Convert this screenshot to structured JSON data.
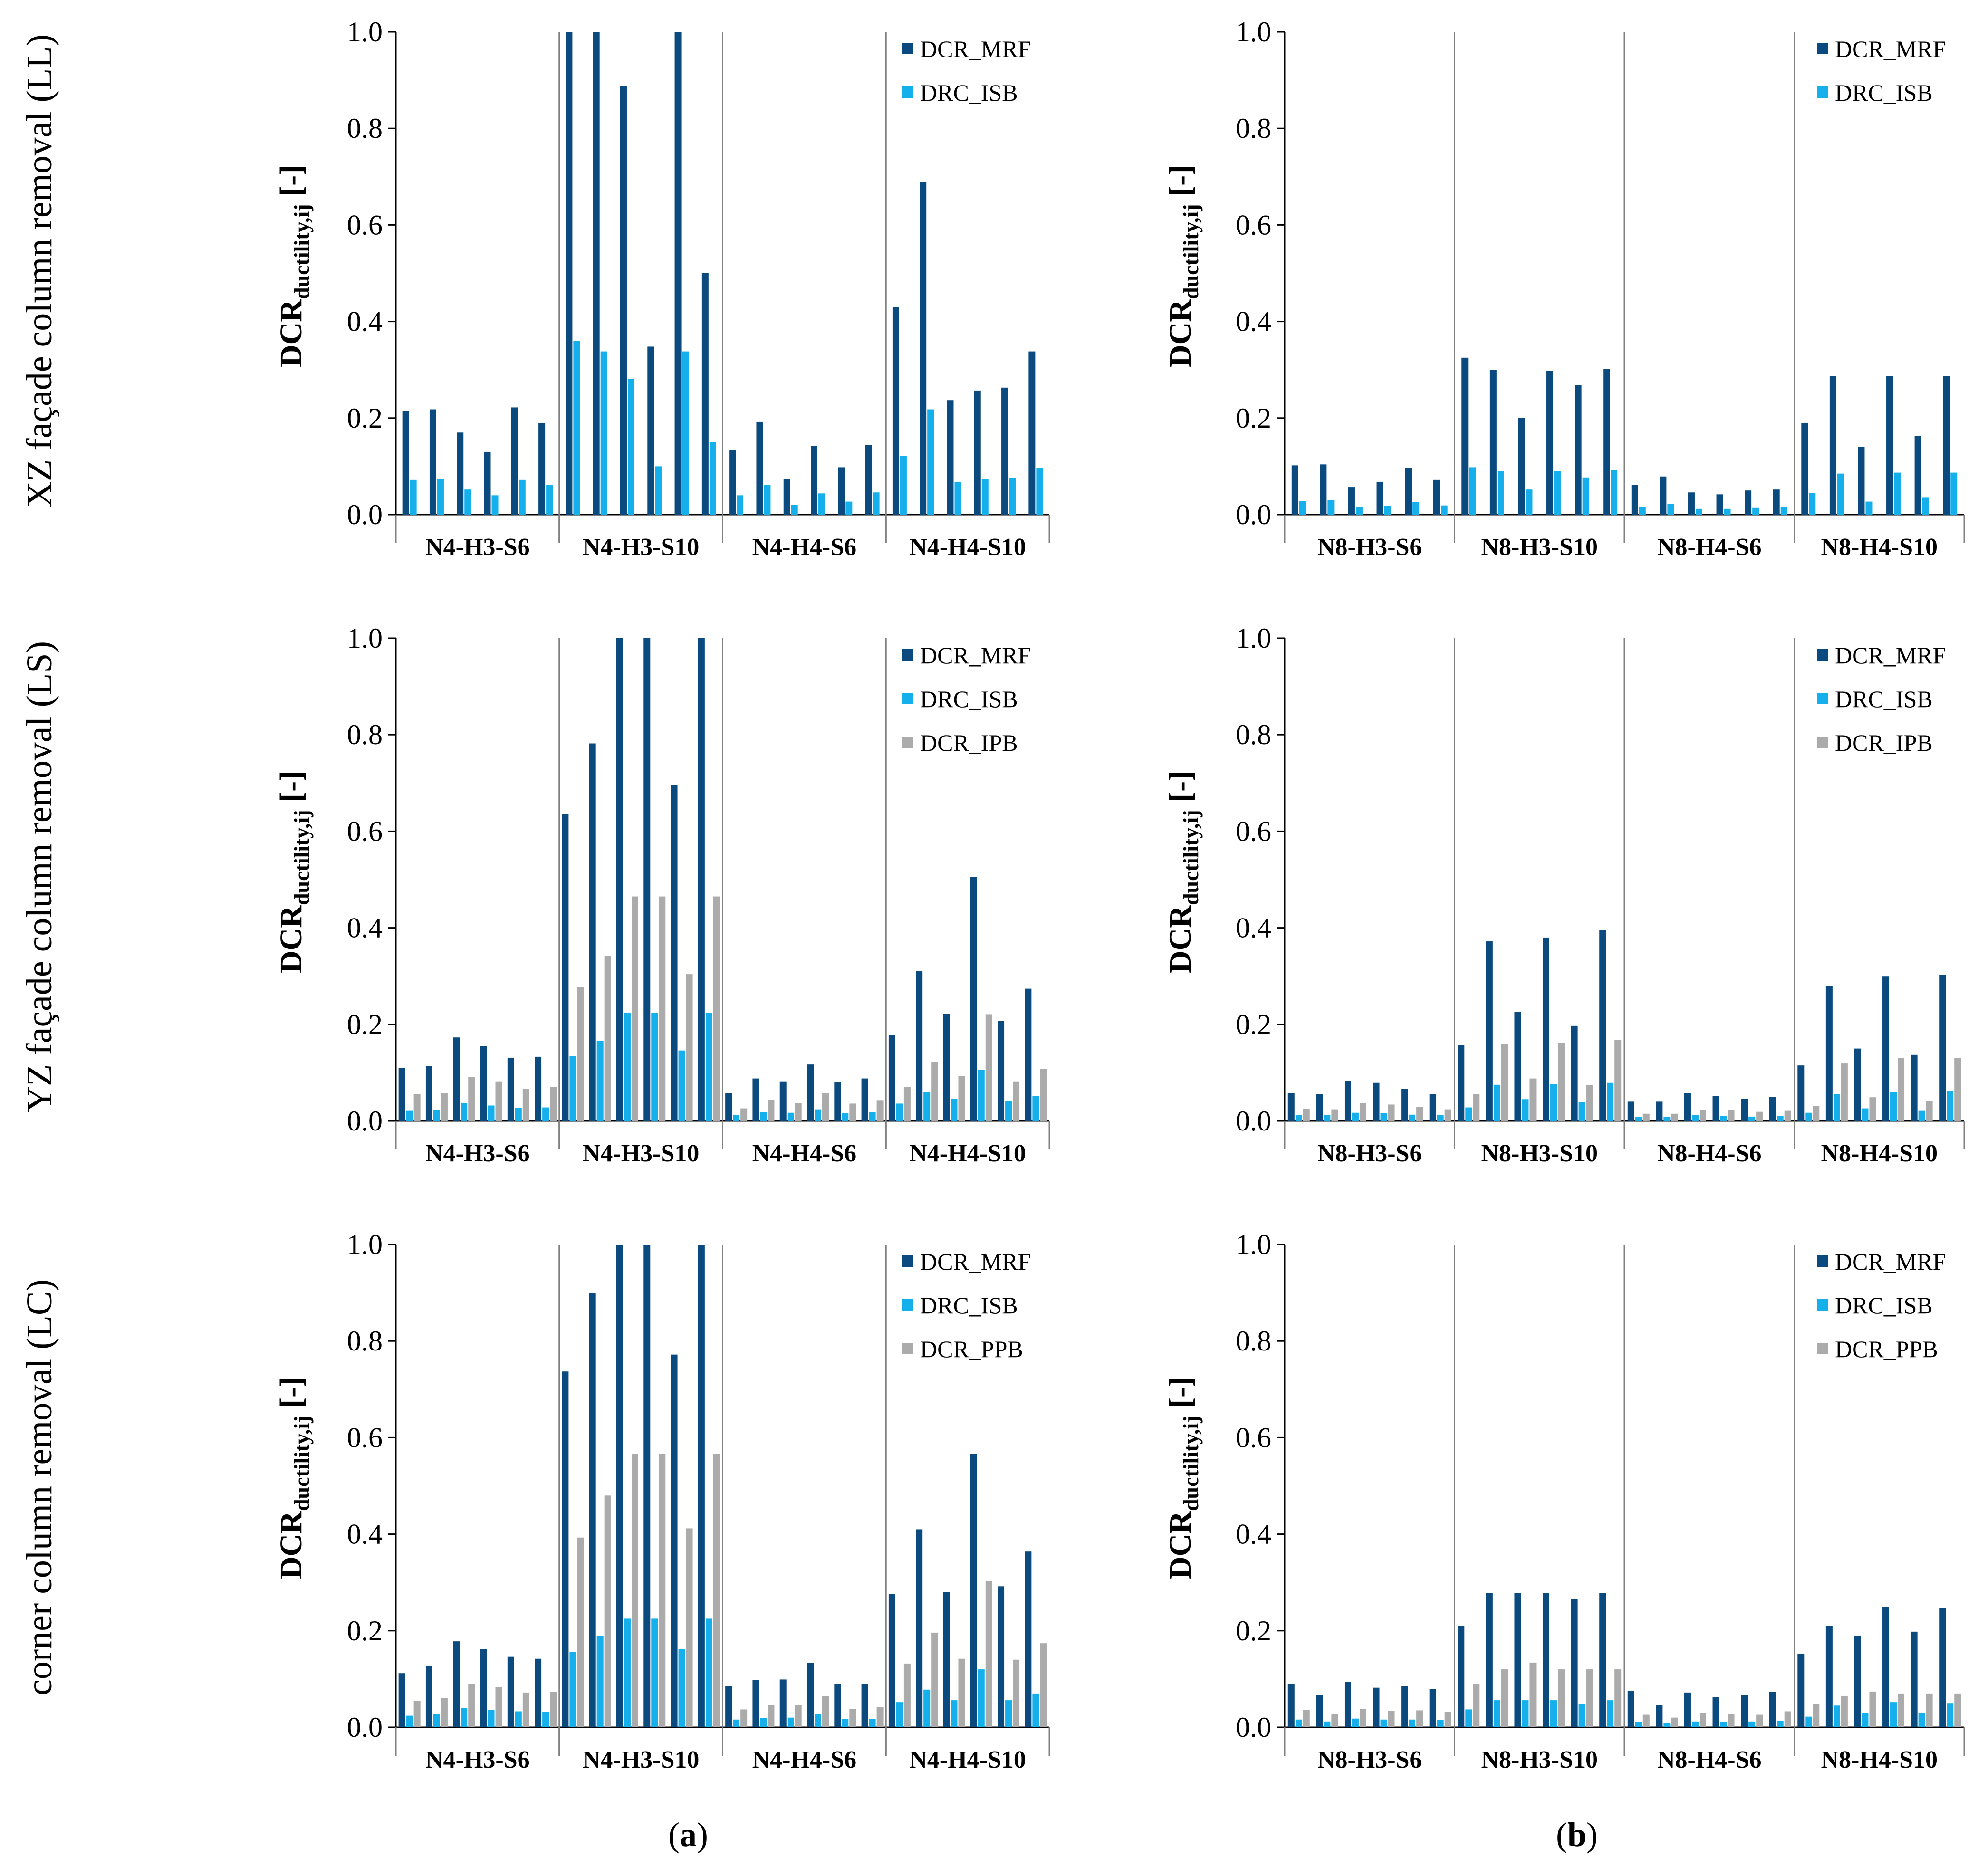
{
  "colors": {
    "mrf": "#0b4a7e",
    "isb": "#15b0ec",
    "ipb": "#ababab",
    "axis": "#000000",
    "divider": "#808080"
  },
  "rows": [
    {
      "label": "XZ façade column removal (LL)"
    },
    {
      "label": "YZ façade column removal (LS)"
    },
    {
      "label": "corner column removal (LC)"
    }
  ],
  "panel_labels": [
    {
      "open": "(",
      "letter": "a",
      "close": ")"
    },
    {
      "open": "(",
      "letter": "b",
      "close": ")"
    }
  ],
  "y_axis": {
    "main": "DCR",
    "sub": "ductility,ij",
    "suffix": " [-]",
    "ticks": [
      "0.0",
      "0.2",
      "0.4",
      "0.6",
      "0.8",
      "1.0"
    ]
  },
  "chart_data": [
    {
      "type": "bar",
      "row": 0,
      "col": 0,
      "ylim": [
        0,
        1.0
      ],
      "categories": [
        "N4-H3-S6",
        "N4-H3-S10",
        "N4-H4-S6",
        "N4-H4-S10"
      ],
      "series": [
        {
          "name": "DCR_MRF",
          "values": [
            [
              0.215,
              0.218,
              0.17,
              0.13,
              0.222,
              0.19
            ],
            [
              1.0,
              1.0,
              0.888,
              0.348,
              1.0,
              0.5
            ],
            [
              0.133,
              0.192,
              0.073,
              0.142,
              0.098,
              0.144
            ],
            [
              0.43,
              0.688,
              0.237,
              0.257,
              0.263,
              0.338
            ]
          ]
        },
        {
          "name": "DRC_ISB",
          "values": [
            [
              0.072,
              0.074,
              0.052,
              0.04,
              0.072,
              0.061
            ],
            [
              0.36,
              0.338,
              0.281,
              0.1,
              0.338,
              0.15
            ],
            [
              0.04,
              0.062,
              0.02,
              0.044,
              0.027,
              0.046
            ],
            [
              0.122,
              0.218,
              0.068,
              0.074,
              0.076,
              0.097
            ]
          ]
        }
      ]
    },
    {
      "type": "bar",
      "row": 0,
      "col": 1,
      "ylim": [
        0,
        1.0
      ],
      "categories": [
        "N8-H3-S6",
        "N8-H3-S10",
        "N8-H4-S6",
        "N8-H4-S10"
      ],
      "series": [
        {
          "name": "DCR_MRF",
          "values": [
            [
              0.102,
              0.104,
              0.057,
              0.068,
              0.097,
              0.072
            ],
            [
              0.325,
              0.3,
              0.2,
              0.298,
              0.268,
              0.302
            ],
            [
              0.062,
              0.079,
              0.046,
              0.042,
              0.05,
              0.052
            ],
            [
              0.19,
              0.287,
              0.14,
              0.287,
              0.163,
              0.287
            ]
          ]
        },
        {
          "name": "DRC_ISB",
          "values": [
            [
              0.028,
              0.03,
              0.015,
              0.018,
              0.026,
              0.019
            ],
            [
              0.098,
              0.09,
              0.052,
              0.09,
              0.077,
              0.092
            ],
            [
              0.016,
              0.022,
              0.012,
              0.012,
              0.014,
              0.015
            ],
            [
              0.045,
              0.085,
              0.027,
              0.087,
              0.036,
              0.087
            ]
          ]
        }
      ]
    },
    {
      "type": "bar",
      "row": 1,
      "col": 0,
      "ylim": [
        0,
        1.0
      ],
      "categories": [
        "N4-H3-S6",
        "N4-H3-S10",
        "N4-H4-S6",
        "N4-H4-S10"
      ],
      "series": [
        {
          "name": "DCR_MRF",
          "values": [
            [
              0.11,
              0.114,
              0.173,
              0.155,
              0.131,
              0.133
            ],
            [
              0.635,
              0.782,
              1.0,
              1.0,
              0.695,
              1.0
            ],
            [
              0.058,
              0.088,
              0.082,
              0.117,
              0.08,
              0.088
            ],
            [
              0.178,
              0.31,
              0.222,
              0.505,
              0.207,
              0.274
            ]
          ]
        },
        {
          "name": "DRC_ISB",
          "values": [
            [
              0.022,
              0.023,
              0.037,
              0.032,
              0.027,
              0.028
            ],
            [
              0.134,
              0.166,
              0.224,
              0.224,
              0.146,
              0.224
            ],
            [
              0.012,
              0.018,
              0.017,
              0.024,
              0.016,
              0.018
            ],
            [
              0.036,
              0.06,
              0.046,
              0.106,
              0.042,
              0.052
            ]
          ]
        },
        {
          "name": "DCR_IPB",
          "values": [
            [
              0.056,
              0.058,
              0.091,
              0.082,
              0.066,
              0.07
            ],
            [
              0.277,
              0.342,
              0.465,
              0.465,
              0.304,
              0.465
            ],
            [
              0.026,
              0.044,
              0.037,
              0.058,
              0.036,
              0.043
            ],
            [
              0.07,
              0.122,
              0.093,
              0.221,
              0.082,
              0.108
            ]
          ]
        }
      ]
    },
    {
      "type": "bar",
      "row": 1,
      "col": 1,
      "ylim": [
        0,
        1.0
      ],
      "categories": [
        "N8-H3-S6",
        "N8-H3-S10",
        "N8-H4-S6",
        "N8-H4-S10"
      ],
      "series": [
        {
          "name": "DCR_MRF",
          "values": [
            [
              0.058,
              0.056,
              0.083,
              0.079,
              0.066,
              0.056
            ],
            [
              0.157,
              0.372,
              0.226,
              0.38,
              0.197,
              0.395
            ],
            [
              0.04,
              0.04,
              0.058,
              0.052,
              0.046,
              0.05
            ],
            [
              0.115,
              0.28,
              0.15,
              0.3,
              0.137,
              0.303
            ]
          ]
        },
        {
          "name": "DRC_ISB",
          "values": [
            [
              0.012,
              0.012,
              0.017,
              0.016,
              0.013,
              0.012
            ],
            [
              0.028,
              0.075,
              0.045,
              0.076,
              0.039,
              0.079
            ],
            [
              0.008,
              0.008,
              0.012,
              0.01,
              0.009,
              0.01
            ],
            [
              0.017,
              0.056,
              0.026,
              0.06,
              0.022,
              0.061
            ]
          ]
        },
        {
          "name": "DCR_IPB",
          "values": [
            [
              0.025,
              0.024,
              0.037,
              0.034,
              0.029,
              0.024
            ],
            [
              0.056,
              0.16,
              0.088,
              0.162,
              0.074,
              0.168
            ],
            [
              0.015,
              0.015,
              0.023,
              0.023,
              0.019,
              0.022
            ],
            [
              0.031,
              0.119,
              0.049,
              0.13,
              0.042,
              0.13
            ]
          ]
        }
      ]
    },
    {
      "type": "bar",
      "row": 2,
      "col": 0,
      "ylim": [
        0,
        1.0
      ],
      "categories": [
        "N4-H3-S6",
        "N4-H3-S10",
        "N4-H4-S6",
        "N4-H4-S10"
      ],
      "series": [
        {
          "name": "DCR_MRF",
          "values": [
            [
              0.112,
              0.128,
              0.178,
              0.162,
              0.146,
              0.142
            ],
            [
              0.737,
              0.9,
              1.0,
              1.0,
              0.772,
              1.0
            ],
            [
              0.085,
              0.098,
              0.099,
              0.133,
              0.09,
              0.09
            ],
            [
              0.276,
              0.41,
              0.28,
              0.566,
              0.292,
              0.364
            ]
          ]
        },
        {
          "name": "DRC_ISB",
          "values": [
            [
              0.024,
              0.027,
              0.04,
              0.036,
              0.033,
              0.032
            ],
            [
              0.156,
              0.19,
              0.225,
              0.225,
              0.162,
              0.225
            ],
            [
              0.016,
              0.019,
              0.02,
              0.028,
              0.017,
              0.017
            ],
            [
              0.052,
              0.078,
              0.056,
              0.12,
              0.056,
              0.07
            ]
          ]
        },
        {
          "name": "DCR_PPB",
          "values": [
            [
              0.055,
              0.061,
              0.09,
              0.083,
              0.072,
              0.073
            ],
            [
              0.393,
              0.48,
              0.566,
              0.566,
              0.412,
              0.566
            ],
            [
              0.037,
              0.046,
              0.046,
              0.064,
              0.038,
              0.042
            ],
            [
              0.132,
              0.196,
              0.142,
              0.303,
              0.14,
              0.174
            ]
          ]
        }
      ]
    },
    {
      "type": "bar",
      "row": 2,
      "col": 1,
      "ylim": [
        0,
        1.0
      ],
      "categories": [
        "N8-H3-S6",
        "N8-H3-S10",
        "N8-H4-S6",
        "N8-H4-S10"
      ],
      "series": [
        {
          "name": "DCR_MRF",
          "values": [
            [
              0.09,
              0.067,
              0.094,
              0.082,
              0.085,
              0.079
            ],
            [
              0.21,
              0.278,
              0.278,
              0.278,
              0.265,
              0.278
            ],
            [
              0.075,
              0.046,
              0.072,
              0.063,
              0.066,
              0.073
            ],
            [
              0.152,
              0.21,
              0.19,
              0.25,
              0.198,
              0.248
            ]
          ]
        },
        {
          "name": "DRC_ISB",
          "values": [
            [
              0.016,
              0.012,
              0.018,
              0.016,
              0.016,
              0.015
            ],
            [
              0.037,
              0.056,
              0.056,
              0.056,
              0.049,
              0.056
            ],
            [
              0.011,
              0.008,
              0.012,
              0.011,
              0.012,
              0.013
            ],
            [
              0.022,
              0.045,
              0.03,
              0.052,
              0.03,
              0.05
            ]
          ]
        },
        {
          "name": "DCR_PPB",
          "values": [
            [
              0.036,
              0.028,
              0.038,
              0.034,
              0.035,
              0.032
            ],
            [
              0.09,
              0.12,
              0.134,
              0.12,
              0.12,
              0.12
            ],
            [
              0.026,
              0.02,
              0.03,
              0.028,
              0.026,
              0.033
            ],
            [
              0.048,
              0.065,
              0.074,
              0.07,
              0.07,
              0.07
            ]
          ]
        }
      ]
    }
  ]
}
